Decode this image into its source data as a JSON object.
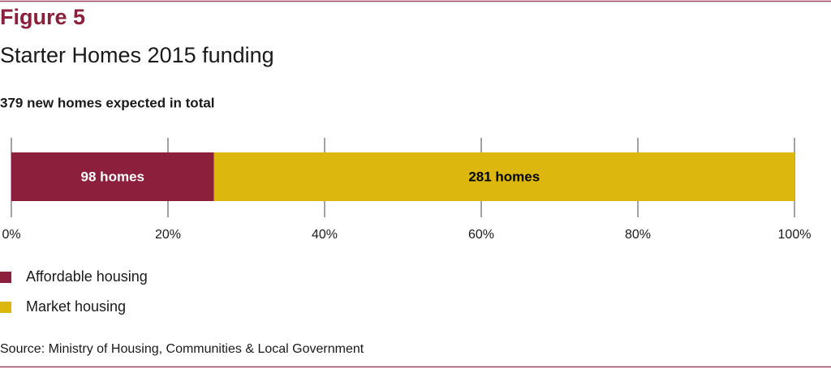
{
  "chart_data": {
    "type": "stacked_bar_horizontal",
    "title": "Figure 5",
    "subtitle": "Starter Homes 2015 funding",
    "annotation": "379 new homes expected in total",
    "source": "Source: Ministry of Housing, Communities & Local Government",
    "series": [
      {
        "name": "Affordable housing",
        "color": "#8c1f3b",
        "label_color": "#ffffff",
        "values": [
          25.86
        ],
        "value_labels": [
          "98 homes"
        ]
      },
      {
        "name": "Market housing",
        "color": "#dcb70e",
        "label_color": "#000000",
        "values": [
          74.14
        ],
        "value_labels": [
          "281 homes"
        ]
      }
    ],
    "xlim": [
      0,
      100
    ],
    "xticks": [
      {
        "value": 0,
        "label": "0%"
      },
      {
        "value": 20,
        "label": "20%"
      },
      {
        "value": 40,
        "label": "40%"
      },
      {
        "value": 60,
        "label": "60%"
      },
      {
        "value": 80,
        "label": "80%"
      },
      {
        "value": 100,
        "label": "100%"
      }
    ],
    "grid": true
  }
}
